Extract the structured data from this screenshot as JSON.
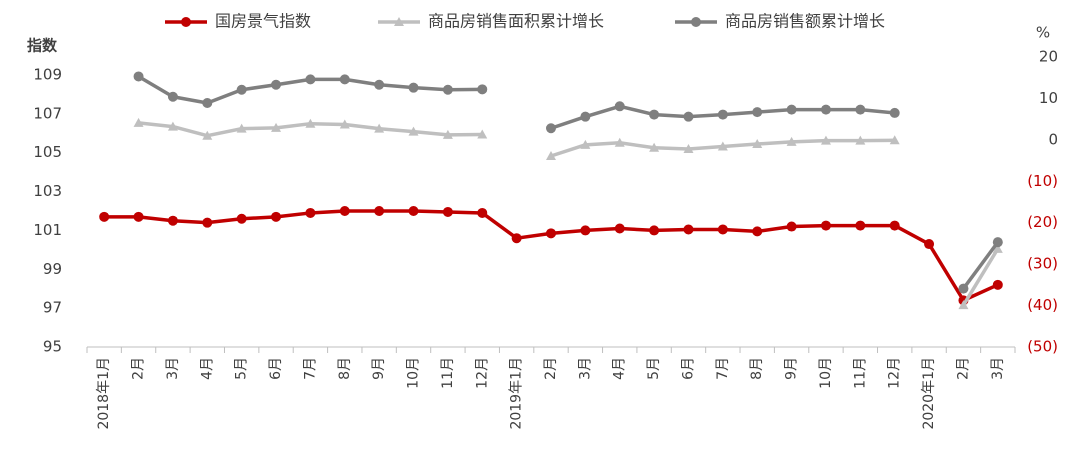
{
  "chart_data": {
    "type": "line",
    "ylabel": "指数",
    "y2label": "%",
    "categories": [
      "2018年1月",
      "2月",
      "3月",
      "4月",
      "5月",
      "6月",
      "7月",
      "8月",
      "9月",
      "10月",
      "11月",
      "12月",
      "2019年1月",
      "2月",
      "3月",
      "4月",
      "5月",
      "6月",
      "7月",
      "8月",
      "9月",
      "10月",
      "11月",
      "12月",
      "2020年1月",
      "2月",
      "3月"
    ],
    "ylim": [
      95,
      109
    ],
    "yticks": [
      95,
      97,
      99,
      101,
      103,
      105,
      107,
      109
    ],
    "y2lim": [
      -50,
      20
    ],
    "y2ticks": [
      {
        "value": -50,
        "label": "(50)"
      },
      {
        "value": -40,
        "label": "(40)"
      },
      {
        "value": -30,
        "label": "(30)"
      },
      {
        "value": -20,
        "label": "(20)"
      },
      {
        "value": -10,
        "label": "(10)"
      },
      0,
      10,
      20
    ],
    "legend": "top",
    "series": [
      {
        "name": "国房景气指数",
        "color": "#c00000",
        "marker": "circle",
        "axis": "y",
        "values": [
          101.7,
          101.7,
          101.5,
          101.4,
          101.6,
          101.7,
          101.9,
          102.0,
          102.0,
          102.0,
          101.95,
          101.9,
          100.6,
          100.85,
          101.0,
          101.1,
          101.0,
          101.05,
          101.05,
          100.95,
          101.2,
          101.25,
          101.25,
          101.25,
          100.3,
          97.4,
          98.2
        ]
      },
      {
        "name": "商品房销售面积累计增长",
        "color": "#bfbfbf",
        "marker": "triangle",
        "axis": "y2",
        "values": [
          null,
          4.1,
          3.2,
          1.0,
          2.7,
          2.9,
          3.9,
          3.7,
          2.7,
          2.0,
          1.2,
          1.3,
          null,
          -3.9,
          -1.2,
          -0.7,
          -1.9,
          -2.2,
          -1.6,
          -1.0,
          -0.5,
          -0.2,
          -0.2,
          -0.1,
          null,
          -39.9,
          -26.3
        ]
      },
      {
        "name": "商品房销售额累计增长",
        "color": "#7f7f7f",
        "marker": "circle",
        "axis": "y2",
        "values": [
          null,
          15.3,
          10.4,
          8.9,
          12.1,
          13.3,
          14.6,
          14.6,
          13.3,
          12.6,
          12.1,
          12.2,
          null,
          2.8,
          5.6,
          8.1,
          6.1,
          5.6,
          6.1,
          6.7,
          7.3,
          7.3,
          7.3,
          6.5,
          null,
          -35.9,
          -24.7
        ]
      }
    ]
  }
}
